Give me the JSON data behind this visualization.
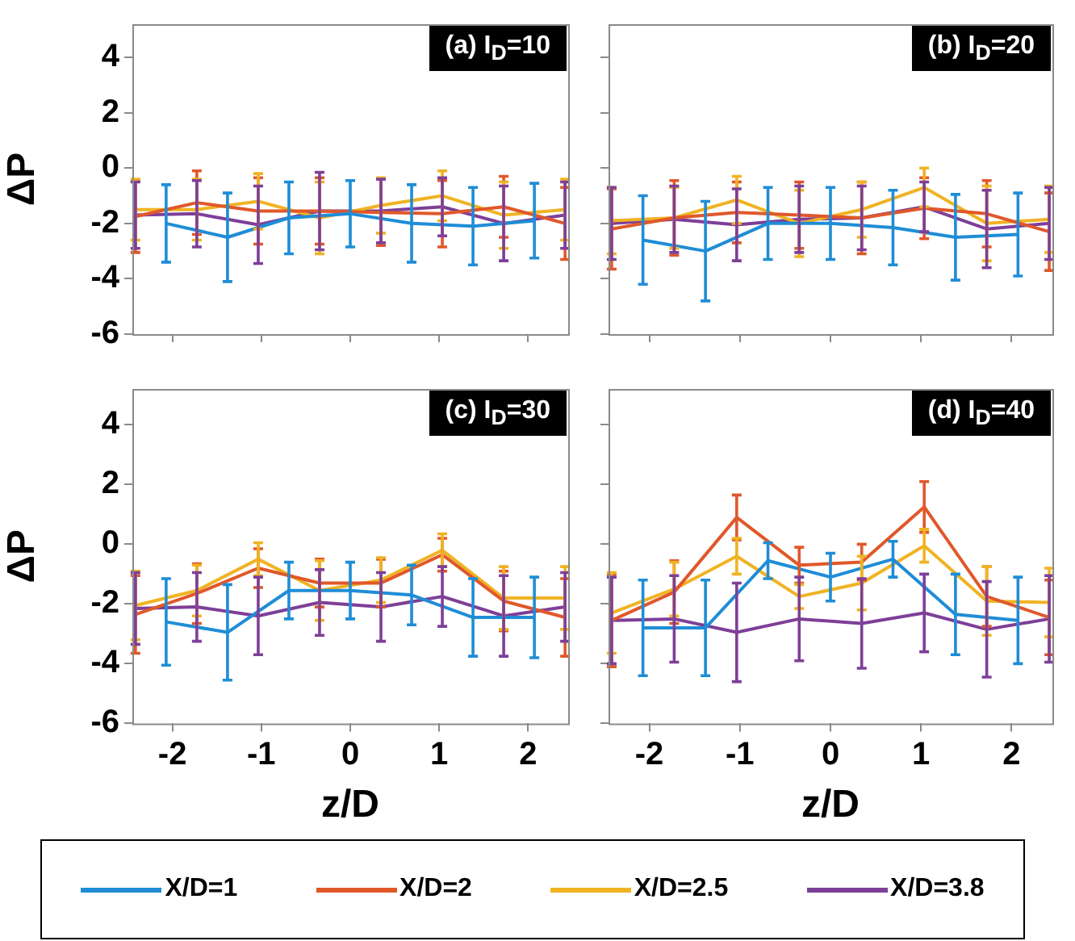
{
  "chart_data": [
    {
      "type": "line",
      "title": "(a) I$_{D}$=10",
      "ylabel": "ΔP",
      "xlim": [
        -2.45,
        2.45
      ],
      "xticks": [
        -2,
        -1,
        0,
        1,
        2
      ],
      "ylim": [
        -6,
        5.2
      ],
      "yticks": [
        -6,
        -4,
        -2,
        0,
        2,
        4
      ],
      "tick_labels": "y",
      "grid": false,
      "legend": "bottom",
      "series": [
        {
          "name": "X/D=1",
          "color": "#1f8dd6",
          "x": [
            -2.07,
            -1.38,
            -0.69,
            0,
            0.69,
            1.38,
            2.07
          ],
          "values": [
            -2.0,
            -2.5,
            -1.8,
            -1.65,
            -2.0,
            -2.1,
            -1.9
          ],
          "errors": [
            1.4,
            1.6,
            1.3,
            1.2,
            1.4,
            1.4,
            1.35
          ]
        },
        {
          "name": "X/D=2",
          "color": "#e0582a",
          "x": [
            -2.415,
            -1.725,
            -1.035,
            -0.345,
            0.345,
            1.035,
            1.725,
            2.415
          ],
          "values": [
            -1.75,
            -1.25,
            -1.55,
            -1.55,
            -1.6,
            -1.65,
            -1.4,
            -2.0
          ],
          "errors": [
            1.3,
            1.15,
            1.2,
            1.2,
            1.2,
            1.2,
            1.1,
            1.3
          ]
        },
        {
          "name": "X/D=2.5",
          "color": "#f0b323",
          "x": [
            -2.415,
            -1.725,
            -1.035,
            -0.345,
            0.345,
            1.035,
            1.725,
            2.415
          ],
          "values": [
            -1.5,
            -1.5,
            -1.2,
            -1.8,
            -1.35,
            -1.0,
            -1.7,
            -1.5
          ],
          "errors": [
            1.1,
            1.1,
            1.0,
            1.3,
            1.0,
            0.9,
            1.2,
            1.1
          ]
        },
        {
          "name": "X/D=3.8",
          "color": "#7e3f98",
          "x": [
            -2.415,
            -1.725,
            -1.035,
            -0.345,
            0.345,
            1.035,
            1.725,
            2.415
          ],
          "values": [
            -1.7,
            -1.65,
            -2.05,
            -1.55,
            -1.55,
            -1.4,
            -2.0,
            -1.7
          ],
          "errors": [
            1.2,
            1.2,
            1.4,
            1.4,
            1.15,
            1.05,
            1.35,
            1.2
          ]
        }
      ]
    },
    {
      "type": "line",
      "title": "(b) I$_{D}$=20",
      "xlim": [
        -2.45,
        2.45
      ],
      "xticks": [
        -2,
        -1,
        0,
        1,
        2
      ],
      "ylim": [
        -6,
        5.2
      ],
      "yticks": [
        -6,
        -4,
        -2,
        0,
        2,
        4
      ],
      "tick_labels": false,
      "grid": false,
      "series": [
        {
          "color": "#1f8dd6",
          "x": [
            -2.07,
            -1.38,
            -0.69,
            0,
            0.69,
            1.38,
            2.07
          ],
          "values": [
            -2.6,
            -3.0,
            -2.0,
            -2.0,
            -2.15,
            -2.5,
            -2.4
          ],
          "errors": [
            1.6,
            1.8,
            1.3,
            1.3,
            1.35,
            1.55,
            1.5
          ]
        },
        {
          "color": "#e0582a",
          "x": [
            -2.415,
            -1.725,
            -1.035,
            -0.345,
            0.345,
            1.035,
            1.725,
            2.415
          ],
          "values": [
            -2.2,
            -1.8,
            -1.6,
            -1.7,
            -1.8,
            -1.45,
            -1.65,
            -2.3
          ],
          "errors": [
            1.45,
            1.35,
            1.1,
            1.2,
            1.3,
            1.1,
            1.2,
            1.4
          ]
        },
        {
          "color": "#f0b323",
          "x": [
            -2.415,
            -1.725,
            -1.035,
            -0.345,
            0.345,
            1.035,
            1.725,
            2.415
          ],
          "values": [
            -1.9,
            -1.8,
            -1.15,
            -2.0,
            -1.5,
            -0.7,
            -2.0,
            -1.85
          ],
          "errors": [
            1.2,
            1.1,
            0.85,
            1.2,
            1.0,
            0.7,
            1.35,
            1.2
          ]
        },
        {
          "color": "#7e3f98",
          "x": [
            -2.415,
            -1.725,
            -1.035,
            -0.345,
            0.345,
            1.035,
            1.725,
            2.415
          ],
          "values": [
            -2.0,
            -1.85,
            -2.05,
            -1.85,
            -1.8,
            -1.4,
            -2.2,
            -2.0
          ],
          "errors": [
            1.3,
            1.2,
            1.3,
            1.2,
            1.15,
            0.9,
            1.4,
            1.3
          ]
        }
      ]
    },
    {
      "type": "line",
      "title": "(c) I$_{D}$=30",
      "ylabel": "ΔP",
      "xlabel": "z/D",
      "xlim": [
        -2.45,
        2.45
      ],
      "xticks": [
        -2,
        -1,
        0,
        1,
        2
      ],
      "ylim": [
        -6,
        5.2
      ],
      "yticks": [
        -6,
        -4,
        -2,
        0,
        2,
        4
      ],
      "grid": false,
      "series": [
        {
          "color": "#1f8dd6",
          "x": [
            -2.07,
            -1.38,
            -0.69,
            0,
            0.69,
            1.38,
            2.07
          ],
          "values": [
            -2.6,
            -2.95,
            -1.55,
            -1.55,
            -1.7,
            -2.45,
            -2.45
          ],
          "errors": [
            1.45,
            1.6,
            0.95,
            0.95,
            1.0,
            1.3,
            1.35
          ]
        },
        {
          "color": "#e0582a",
          "x": [
            -2.415,
            -1.725,
            -1.035,
            -0.345,
            0.345,
            1.035,
            1.725,
            2.415
          ],
          "values": [
            -2.35,
            -1.65,
            -0.8,
            -1.3,
            -1.3,
            -0.35,
            -1.9,
            -2.45
          ],
          "errors": [
            1.3,
            1.0,
            0.65,
            0.8,
            0.8,
            0.55,
            1.0,
            1.3
          ]
        },
        {
          "color": "#f0b323",
          "x": [
            -2.415,
            -1.725,
            -1.035,
            -0.345,
            0.345,
            1.035,
            1.725,
            2.415
          ],
          "values": [
            -2.05,
            -1.55,
            -0.5,
            -1.55,
            -1.2,
            -0.2,
            -1.8,
            -1.8
          ],
          "errors": [
            1.15,
            0.85,
            0.55,
            1.0,
            0.75,
            0.55,
            1.05,
            1.05
          ]
        },
        {
          "color": "#7e3f98",
          "x": [
            -2.415,
            -1.725,
            -1.035,
            -0.345,
            0.345,
            1.035,
            1.725,
            2.415
          ],
          "values": [
            -2.15,
            -2.1,
            -2.4,
            -1.95,
            -2.1,
            -1.75,
            -2.4,
            -2.1
          ],
          "errors": [
            1.2,
            1.15,
            1.3,
            1.1,
            1.15,
            1.0,
            1.35,
            1.15
          ]
        }
      ]
    },
    {
      "type": "line",
      "title": "(d) I$_{D}$=40",
      "xlabel": "z/D",
      "xlim": [
        -2.45,
        2.45
      ],
      "xticks": [
        -2,
        -1,
        0,
        1,
        2
      ],
      "ylim": [
        -6,
        5.2
      ],
      "yticks": [
        -6,
        -4,
        -2,
        0,
        2,
        4
      ],
      "tick_labels": "x",
      "grid": false,
      "series": [
        {
          "color": "#1f8dd6",
          "x": [
            -2.07,
            -1.38,
            -0.69,
            0,
            0.69,
            1.38,
            2.07
          ],
          "values": [
            -2.8,
            -2.8,
            -0.55,
            -1.1,
            -0.5,
            -2.35,
            -2.55
          ],
          "errors": [
            1.6,
            1.6,
            0.6,
            0.8,
            0.6,
            1.35,
            1.45
          ]
        },
        {
          "color": "#e0582a",
          "x": [
            -2.415,
            -1.725,
            -1.035,
            -0.345,
            0.345,
            1.035,
            1.725,
            2.415
          ],
          "values": [
            -2.55,
            -1.6,
            0.9,
            -0.7,
            -0.6,
            1.25,
            -1.75,
            -2.45
          ],
          "errors": [
            1.55,
            1.05,
            0.75,
            0.6,
            0.6,
            0.85,
            1.0,
            1.25
          ]
        },
        {
          "color": "#f0b323",
          "x": [
            -2.415,
            -1.725,
            -1.035,
            -0.345,
            0.345,
            1.035,
            1.725,
            2.415
          ],
          "values": [
            -2.3,
            -1.5,
            -0.4,
            -1.75,
            -1.3,
            -0.05,
            -1.9,
            -1.95
          ],
          "errors": [
            1.35,
            0.9,
            0.6,
            0.4,
            0.9,
            0.55,
            1.15,
            1.15
          ]
        },
        {
          "color": "#7e3f98",
          "x": [
            -2.415,
            -1.725,
            -1.035,
            -0.345,
            0.345,
            1.035,
            1.725,
            2.415
          ],
          "values": [
            -2.55,
            -2.5,
            -2.95,
            -2.5,
            -2.65,
            -2.3,
            -2.85,
            -2.5
          ],
          "errors": [
            1.45,
            1.45,
            1.65,
            1.4,
            1.5,
            1.3,
            1.6,
            1.45
          ]
        }
      ]
    }
  ]
}
